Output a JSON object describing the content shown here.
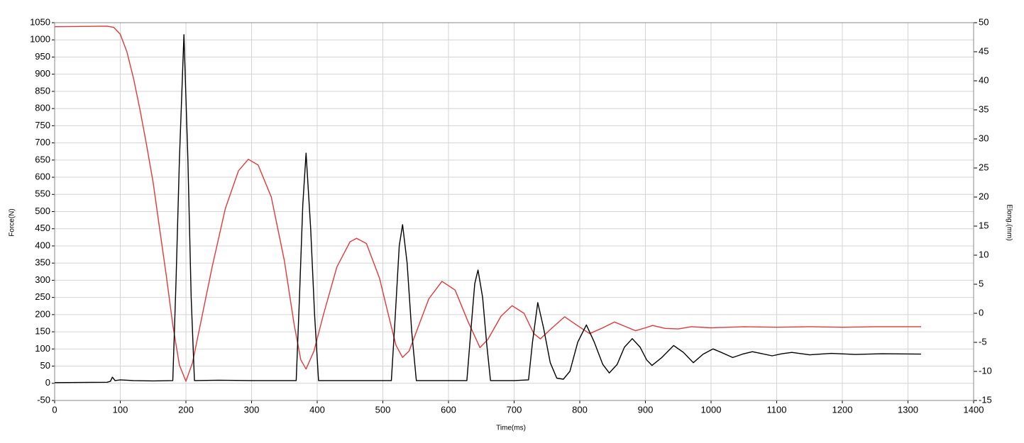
{
  "chart_data": {
    "type": "line",
    "xlabel": "Time(ms)",
    "ylabel": "Force(N)",
    "y2label": "Elong.(mm)",
    "xlim": [
      0,
      1400
    ],
    "xticks": [
      0,
      100,
      200,
      300,
      400,
      500,
      600,
      700,
      800,
      900,
      1000,
      1100,
      1200,
      1300,
      1400
    ],
    "ylim": [
      -50,
      1050
    ],
    "yticks": [
      -50,
      0,
      50,
      100,
      150,
      200,
      250,
      300,
      350,
      400,
      450,
      500,
      550,
      600,
      650,
      700,
      750,
      800,
      850,
      900,
      950,
      1000,
      1050
    ],
    "y2lim": [
      -15,
      50
    ],
    "y2ticks": [
      -15,
      -10,
      -5,
      0,
      5,
      10,
      15,
      20,
      25,
      30,
      35,
      40,
      45,
      50
    ],
    "grid": true,
    "series": [
      {
        "color": "#000000",
        "x": [
          0,
          80,
          85,
          88,
          92,
          100,
          120,
          150,
          180,
          185,
          190,
          197,
          203,
          208,
          213,
          250,
          300,
          368,
          373,
          378,
          383,
          390,
          396,
          402,
          450,
          513,
          519,
          525,
          530,
          537,
          544,
          551,
          600,
          628,
          634,
          640,
          645,
          652,
          658,
          664,
          700,
          722,
          728,
          736,
          745,
          755,
          765,
          775,
          785,
          797,
          810,
          822,
          835,
          845,
          857,
          868,
          880,
          892,
          902,
          910,
          925,
          943,
          958,
          973,
          988,
          1003,
          1018,
          1033,
          1048,
          1063,
          1078,
          1093,
          1108,
          1123,
          1150,
          1183,
          1220,
          1260,
          1320
        ],
        "values": [
          2,
          3,
          6,
          18,
          8,
          10,
          8,
          7,
          8,
          300,
          650,
          1015,
          650,
          250,
          8,
          9,
          8,
          8,
          250,
          520,
          670,
          450,
          200,
          8,
          8,
          8,
          200,
          400,
          462,
          350,
          150,
          8,
          8,
          8,
          150,
          290,
          330,
          250,
          120,
          8,
          8,
          10,
          120,
          235,
          160,
          60,
          15,
          12,
          35,
          120,
          170,
          120,
          55,
          30,
          55,
          105,
          130,
          105,
          68,
          52,
          75,
          110,
          90,
          60,
          85,
          100,
          88,
          75,
          85,
          92,
          86,
          80,
          86,
          90,
          83,
          87,
          84,
          86,
          85
        ]
      },
      {
        "color": "#e03a3a",
        "axis": "y2",
        "x": [
          0,
          80,
          90,
          100,
          110,
          120,
          130,
          140,
          150,
          160,
          170,
          180,
          190,
          200,
          210,
          220,
          240,
          260,
          280,
          295,
          310,
          330,
          350,
          365,
          375,
          383,
          395,
          410,
          430,
          450,
          460,
          475,
          495,
          510,
          520,
          530,
          540,
          555,
          570,
          590,
          610,
          630,
          648,
          660,
          680,
          697,
          715,
          730,
          740,
          755,
          777,
          795,
          815,
          835,
          853,
          870,
          885,
          900,
          911,
          930,
          950,
          970,
          1000,
          1050,
          1100,
          1150,
          1200,
          1250,
          1320
        ],
        "values": [
          49.3,
          49.4,
          49.2,
          48,
          45,
          40.5,
          35,
          29,
          22.5,
          14.5,
          6.5,
          -2,
          -8.9,
          -11.7,
          -8.5,
          -3,
          8,
          18,
          24.5,
          26.5,
          25.5,
          20,
          9,
          -2,
          -8,
          -9.6,
          -6.5,
          0,
          8,
          12.3,
          12.9,
          12,
          6,
          -1,
          -5.5,
          -7.6,
          -6.5,
          -2,
          2.5,
          5.5,
          4,
          -1.5,
          -5.9,
          -4.5,
          -0.5,
          1.3,
          0,
          -3.5,
          -4.4,
          -2.8,
          -0.6,
          -2,
          -3.5,
          -2.5,
          -1.5,
          -2.3,
          -3,
          -2.5,
          -2.1,
          -2.6,
          -2.7,
          -2.3,
          -2.5,
          -2.3,
          -2.4,
          -2.3,
          -2.4,
          -2.3,
          -2.3
        ]
      }
    ]
  }
}
